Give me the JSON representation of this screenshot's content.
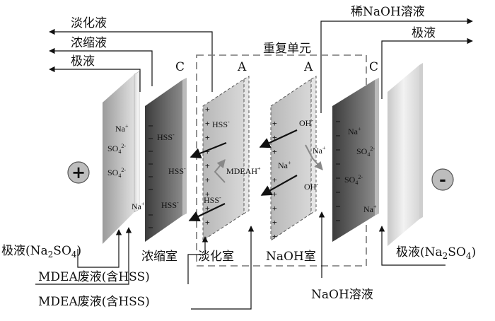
{
  "outlets": {
    "dilute": "淡化液",
    "concentrate": "浓缩液",
    "electrode_left": "极液",
    "dilute_naoh": "稀NaOH溶液",
    "electrode_right": "极液"
  },
  "repeat_unit": "重复单元",
  "membranes": {
    "cation": "C",
    "anion": "A"
  },
  "electrodes": {
    "anode": "+",
    "cathode": "-"
  },
  "ions": {
    "na": "Na",
    "na_sup": "+",
    "so4": "SO",
    "so4_sub": "4",
    "so4_sup": "2-",
    "hss": "HSS",
    "hss_sup": "-",
    "mdeah": "MDEAH",
    "mdeah_sup": "+",
    "oh": "OH",
    "oh_sup": "-"
  },
  "chambers": {
    "concentrate": "浓缩室",
    "dilute": "淡化室",
    "naoh": "NaOH室"
  },
  "inlets": {
    "electrode_left": {
      "pre": "极液(Na",
      "sub1": "2",
      "mid": "SO",
      "sub2": "4",
      "post": ")"
    },
    "mdea_1": "MDEA废液(含HSS)",
    "mdea_2": "MDEA废液(含HSS)",
    "electrode_right": {
      "pre": "极液(Na",
      "sub1": "2",
      "mid": "SO",
      "sub2": "4",
      "post": ")"
    },
    "naoh": "NaOH溶液"
  }
}
